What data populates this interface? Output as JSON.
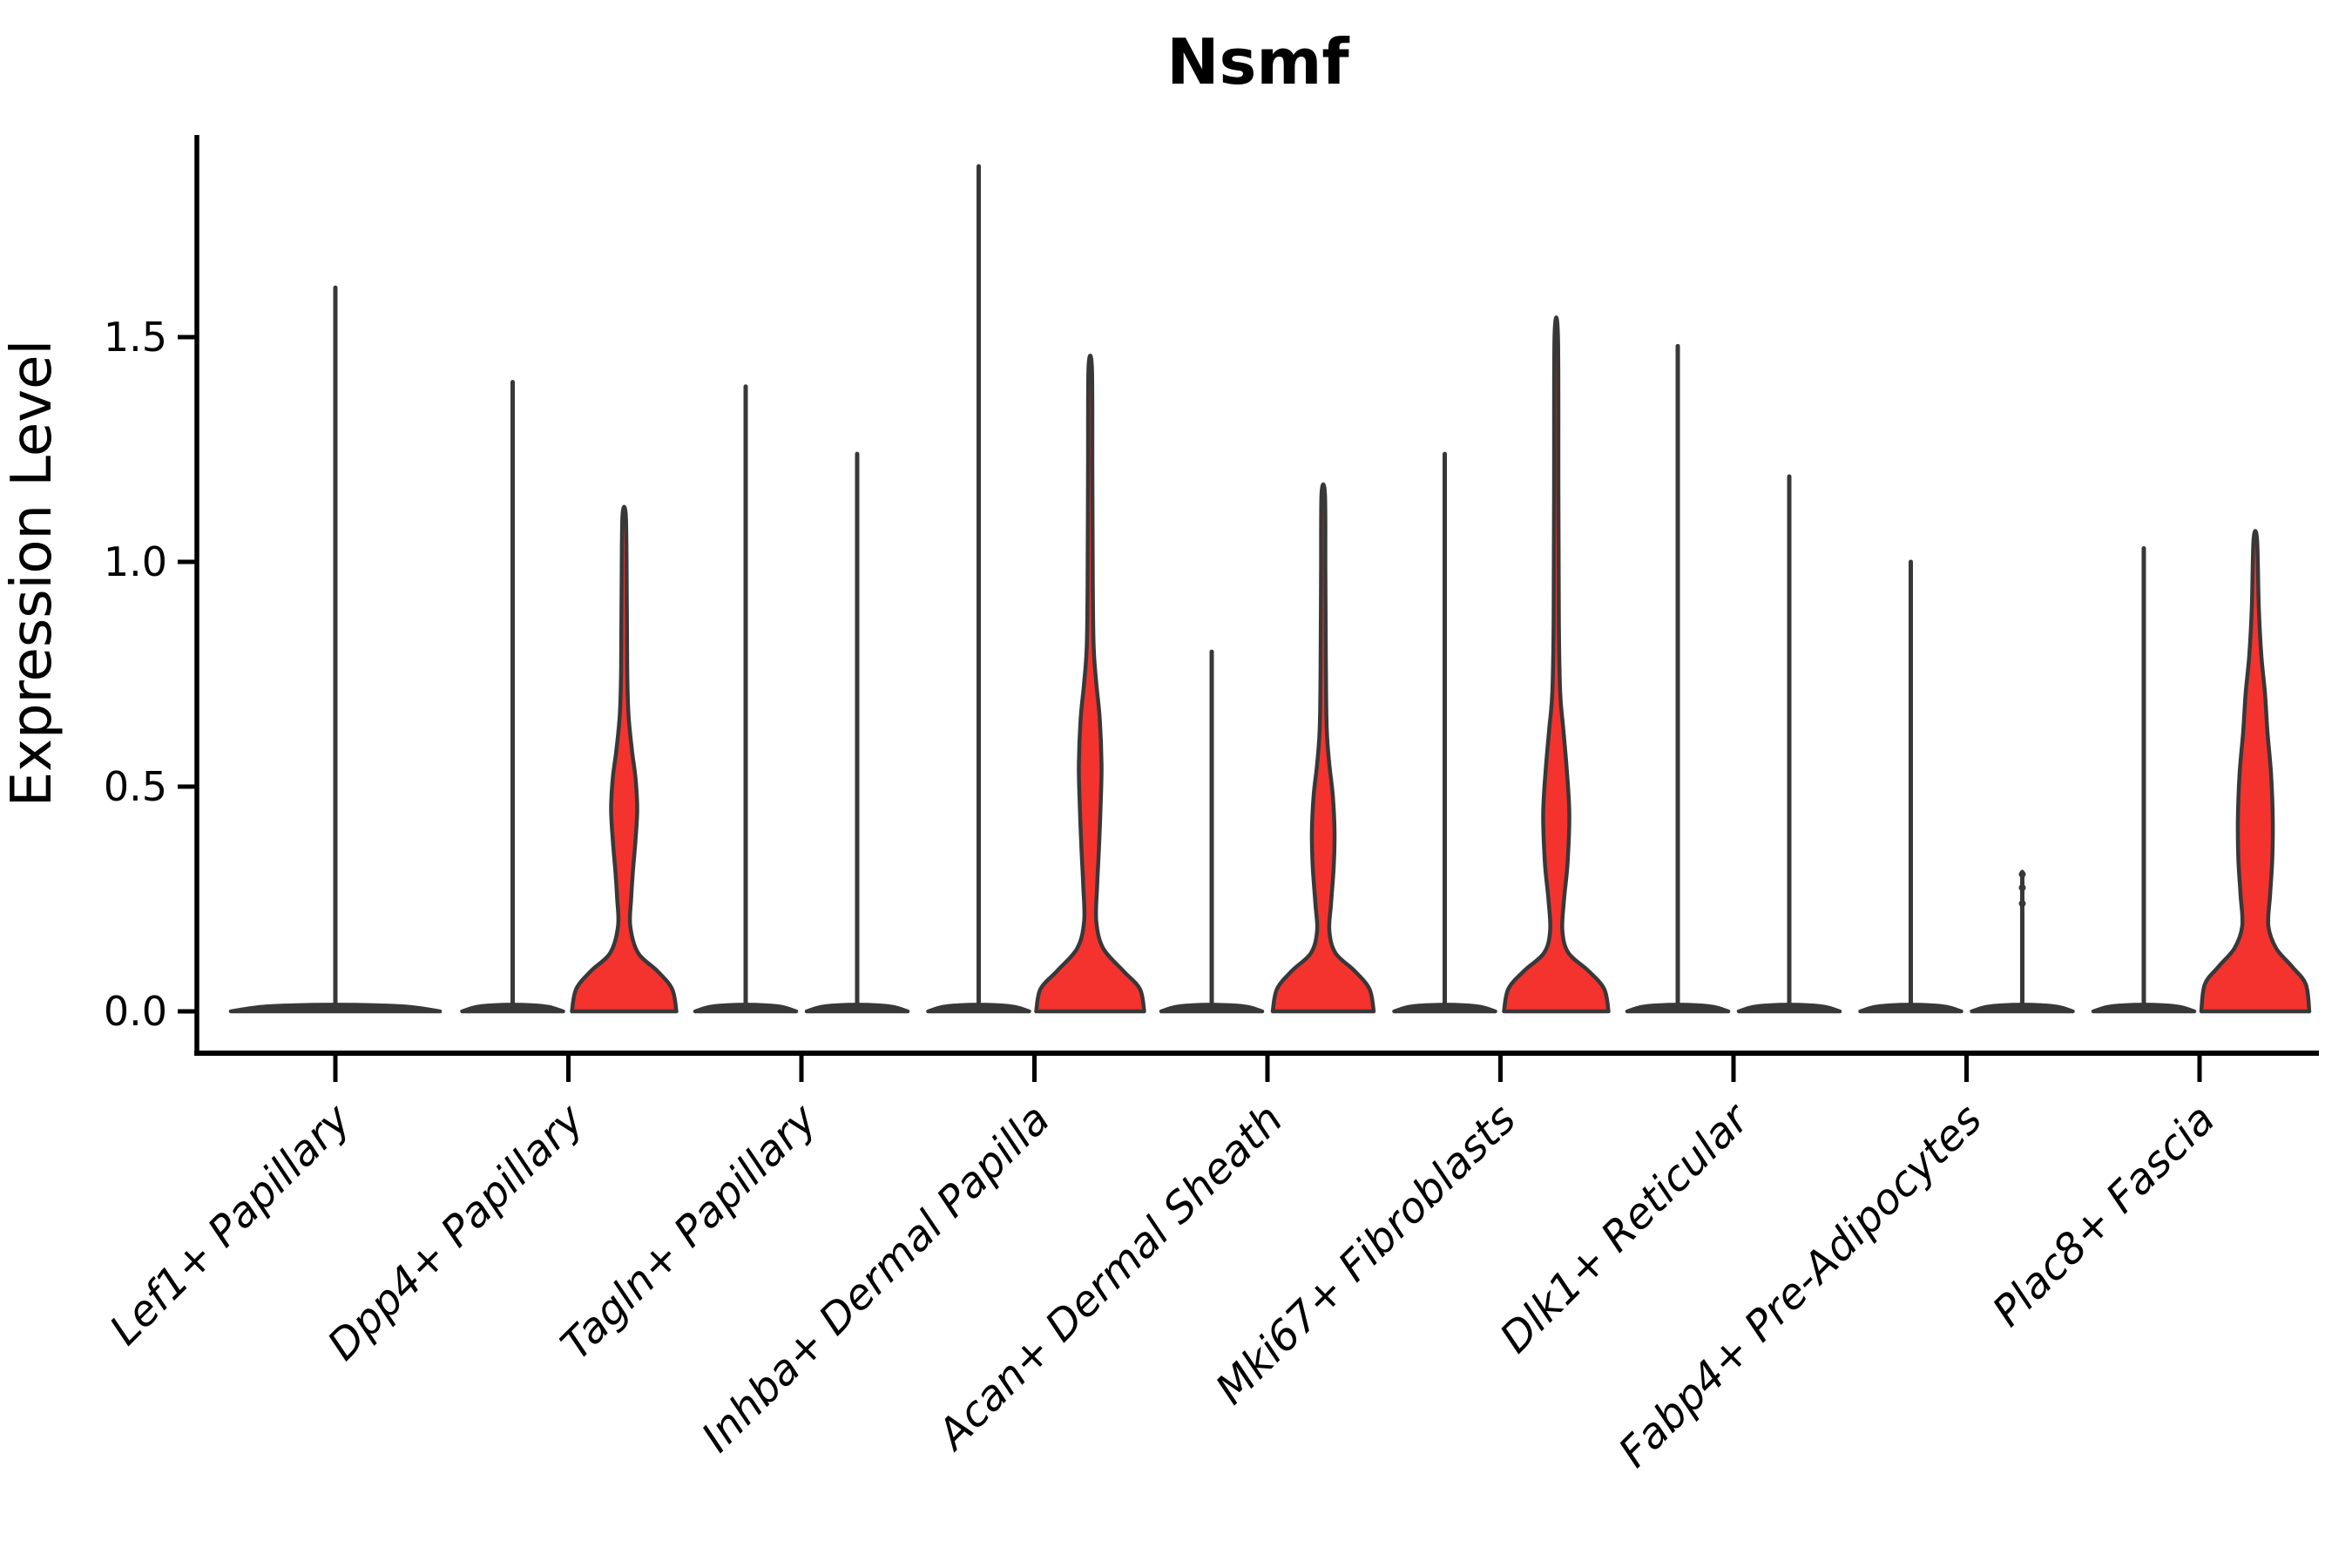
{
  "chart_data": {
    "type": "violin",
    "title": "Nsmf",
    "ylabel": "Expression Level",
    "xlabel": "",
    "grid": false,
    "legend": "none",
    "ylim": [
      0.0,
      1.95
    ],
    "yticks": [
      {
        "value": 0.0,
        "label": "0.0"
      },
      {
        "value": 0.5,
        "label": "0.5"
      },
      {
        "value": 1.0,
        "label": "1.0"
      },
      {
        "value": 1.5,
        "label": "1.5"
      }
    ],
    "categories": [
      "Lef1+ Papillary",
      "Dpp4+ Papillary",
      "Tagln+ Papillary",
      "Inhba+ Dermal Papilla",
      "Acan+ Dermal Sheath",
      "Mki67+ Fibroblasts",
      "Dlk1+ Reticular",
      "Fabp4+ Pre-Adipocytes",
      "Plac8+ Fascia"
    ],
    "colors": {
      "violin_fill": "#f4332e",
      "violin_outline": "#383838",
      "axis": "#000000"
    },
    "violins": [
      {
        "category_index": 0,
        "group": "single",
        "shape": "spike",
        "max": 1.61,
        "base_halfwidth": 120
      },
      {
        "category_index": 1,
        "group": "left",
        "shape": "spike",
        "max": 1.4,
        "base_halfwidth": 58
      },
      {
        "category_index": 1,
        "group": "right",
        "shape": "blob",
        "max": 1.1,
        "profile": [
          [
            0,
            60
          ],
          [
            0.05,
            55
          ],
          [
            0.09,
            38
          ],
          [
            0.13,
            16
          ],
          [
            0.19,
            7
          ],
          [
            0.25,
            8
          ],
          [
            0.31,
            10
          ],
          [
            0.38,
            13
          ],
          [
            0.45,
            15
          ],
          [
            0.52,
            13
          ],
          [
            0.58,
            9
          ],
          [
            0.66,
            5
          ],
          [
            0.76,
            3.5
          ],
          [
            0.92,
            3
          ],
          [
            1.1,
            2
          ]
        ]
      },
      {
        "category_index": 2,
        "group": "left",
        "shape": "spike",
        "max": 1.39,
        "base_halfwidth": 58
      },
      {
        "category_index": 2,
        "group": "right",
        "shape": "spike",
        "max": 1.24,
        "base_halfwidth": 58
      },
      {
        "category_index": 3,
        "group": "left",
        "shape": "spike",
        "max": 1.88,
        "base_halfwidth": 58
      },
      {
        "category_index": 3,
        "group": "right",
        "shape": "blob",
        "max": 1.43,
        "profile": [
          [
            0,
            62
          ],
          [
            0.05,
            57
          ],
          [
            0.09,
            38
          ],
          [
            0.14,
            15
          ],
          [
            0.2,
            7
          ],
          [
            0.28,
            8
          ],
          [
            0.36,
            10
          ],
          [
            0.46,
            12
          ],
          [
            0.55,
            13
          ],
          [
            0.65,
            11
          ],
          [
            0.73,
            7
          ],
          [
            0.81,
            4
          ],
          [
            0.95,
            3
          ],
          [
            1.2,
            2.5
          ],
          [
            1.43,
            2
          ]
        ]
      },
      {
        "category_index": 4,
        "group": "left",
        "shape": "spike",
        "max": 0.8,
        "base_halfwidth": 58
      },
      {
        "category_index": 4,
        "group": "right",
        "shape": "blob",
        "max": 1.15,
        "profile": [
          [
            0,
            58
          ],
          [
            0.05,
            53
          ],
          [
            0.09,
            36
          ],
          [
            0.13,
            14
          ],
          [
            0.18,
            7
          ],
          [
            0.24,
            9
          ],
          [
            0.32,
            12
          ],
          [
            0.4,
            13
          ],
          [
            0.48,
            11
          ],
          [
            0.55,
            7
          ],
          [
            0.63,
            4
          ],
          [
            0.78,
            3
          ],
          [
            0.97,
            2.5
          ],
          [
            1.15,
            2
          ]
        ]
      },
      {
        "category_index": 5,
        "group": "left",
        "shape": "spike",
        "max": 1.24,
        "base_halfwidth": 58
      },
      {
        "category_index": 5,
        "group": "right",
        "shape": "blob",
        "max": 1.5,
        "profile": [
          [
            0,
            60
          ],
          [
            0.05,
            55
          ],
          [
            0.09,
            37
          ],
          [
            0.13,
            14
          ],
          [
            0.18,
            7
          ],
          [
            0.25,
            9
          ],
          [
            0.33,
            13
          ],
          [
            0.44,
            15
          ],
          [
            0.54,
            12
          ],
          [
            0.63,
            8
          ],
          [
            0.71,
            4.5
          ],
          [
            0.87,
            3
          ],
          [
            1.15,
            2.5
          ],
          [
            1.5,
            2
          ]
        ]
      },
      {
        "category_index": 6,
        "group": "left",
        "shape": "spike",
        "max": 1.48,
        "base_halfwidth": 58
      },
      {
        "category_index": 6,
        "group": "right",
        "shape": "spike",
        "max": 1.19,
        "base_halfwidth": 58
      },
      {
        "category_index": 7,
        "group": "left",
        "shape": "spike",
        "max": 1.0,
        "base_halfwidth": 58
      },
      {
        "category_index": 7,
        "group": "right",
        "shape": "spike",
        "max": 0.31,
        "base_halfwidth": 58,
        "dots": [
          0.24,
          0.275,
          0.305
        ]
      },
      {
        "category_index": 8,
        "group": "left",
        "shape": "spike",
        "max": 1.03,
        "base_halfwidth": 58
      },
      {
        "category_index": 8,
        "group": "right",
        "shape": "blob",
        "max": 1.05,
        "profile": [
          [
            0,
            62
          ],
          [
            0.06,
            58
          ],
          [
            0.1,
            42
          ],
          [
            0.14,
            24
          ],
          [
            0.19,
            15
          ],
          [
            0.26,
            17
          ],
          [
            0.34,
            19.5
          ],
          [
            0.43,
            20
          ],
          [
            0.53,
            18
          ],
          [
            0.62,
            14
          ],
          [
            0.71,
            11
          ],
          [
            0.79,
            7
          ],
          [
            0.9,
            4
          ],
          [
            1.05,
            2
          ]
        ]
      }
    ]
  }
}
